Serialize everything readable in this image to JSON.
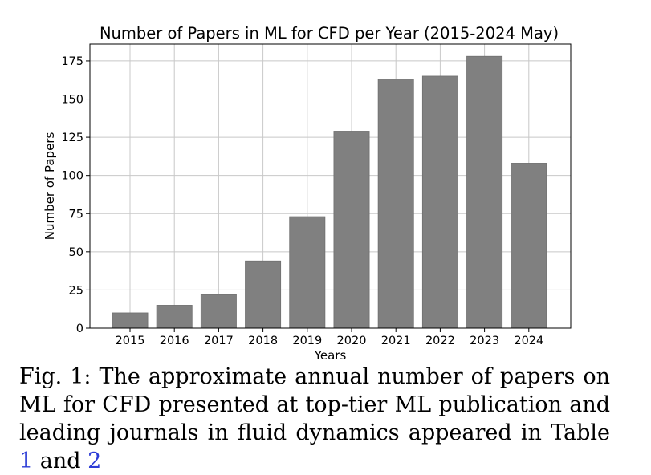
{
  "chart_data": {
    "type": "bar",
    "title": "Number of Papers in ML for CFD per Year (2015-2024 May)",
    "xlabel": "Years",
    "ylabel": "Number of Papers",
    "categories": [
      "2015",
      "2016",
      "2017",
      "2018",
      "2019",
      "2020",
      "2021",
      "2022",
      "2023",
      "2024"
    ],
    "values": [
      10,
      15,
      22,
      44,
      73,
      129,
      163,
      165,
      178,
      108
    ],
    "ylim": [
      0,
      186
    ],
    "yticks": [
      0,
      25,
      50,
      75,
      100,
      125,
      150,
      175
    ],
    "grid": true,
    "bar_color": "#808080",
    "bar_edge_color": "#6f6f6f"
  },
  "caption": {
    "prefix": "Fig. 1: The approximate annual number of papers on ML for CFD presented at top-tier ML publication and leading journals in fluid dynamics appeared in Table ",
    "ref1": "1",
    "middle": " and ",
    "ref2": "2",
    "link_color": "#2b3bd6"
  }
}
